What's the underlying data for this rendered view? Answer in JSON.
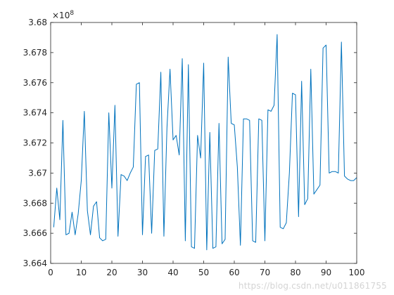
{
  "chart_data": {
    "type": "line",
    "title": "",
    "xlabel": "",
    "ylabel": "",
    "exponent_label": "×10",
    "exponent_power": "8",
    "xlim": [
      0,
      100
    ],
    "ylim": [
      3.664,
      3.68
    ],
    "x_ticks": [
      0,
      10,
      20,
      30,
      40,
      50,
      60,
      70,
      80,
      90,
      100
    ],
    "x_tick_labels": [
      "0",
      "10",
      "20",
      "30",
      "40",
      "50",
      "60",
      "70",
      "80",
      "90",
      "100"
    ],
    "y_ticks": [
      3.664,
      3.666,
      3.668,
      3.67,
      3.672,
      3.674,
      3.676,
      3.678,
      3.68
    ],
    "y_tick_labels": [
      "3.664",
      "3.666",
      "3.668",
      "3.67",
      "3.672",
      "3.674",
      "3.676",
      "3.678",
      "3.68"
    ],
    "grid": false,
    "color": "#0072BD",
    "series": [
      {
        "x": [
          1,
          2,
          3,
          4,
          5,
          6,
          7,
          8,
          9,
          10,
          11,
          12,
          13,
          14,
          15,
          16,
          17,
          18,
          19,
          20,
          21,
          22,
          23,
          24,
          25,
          26,
          27,
          28,
          29,
          30,
          31,
          32,
          33,
          34,
          35,
          36,
          37,
          38,
          39,
          40,
          41,
          42,
          43,
          44,
          45,
          46,
          47,
          48,
          49,
          50,
          51,
          52,
          53,
          54,
          55,
          56,
          57,
          58,
          59,
          60,
          61,
          62,
          63,
          64,
          65,
          66,
          67,
          68,
          69,
          70,
          71,
          72,
          73,
          74,
          75,
          76,
          77,
          78,
          79,
          80,
          81,
          82,
          83,
          84,
          85,
          86,
          87,
          88,
          89,
          90,
          91,
          92,
          93,
          94,
          95,
          96,
          97,
          98,
          99,
          100
        ],
        "y": [
          3.6664,
          3.669,
          3.6669,
          3.6735,
          3.6659,
          3.666,
          3.6674,
          3.6659,
          3.6673,
          3.6695,
          3.6741,
          3.6675,
          3.6659,
          3.6678,
          3.6681,
          3.6657,
          3.6655,
          3.6656,
          3.674,
          3.669,
          3.6745,
          3.6658,
          3.6699,
          3.6698,
          3.6695,
          3.67,
          3.6704,
          3.6759,
          3.676,
          3.6659,
          3.6711,
          3.6712,
          3.666,
          3.6715,
          3.6716,
          3.6767,
          3.6658,
          3.673,
          3.6769,
          3.6722,
          3.6725,
          3.6712,
          3.6776,
          3.6655,
          3.6772,
          3.6651,
          3.665,
          3.6725,
          3.671,
          3.6773,
          3.6649,
          3.6727,
          3.665,
          3.6651,
          3.6733,
          3.6653,
          3.6656,
          3.6777,
          3.6733,
          3.6732,
          3.6704,
          3.6652,
          3.6736,
          3.6736,
          3.6735,
          3.6655,
          3.6654,
          3.6736,
          3.6735,
          3.6655,
          3.6742,
          3.6741,
          3.6745,
          3.6792,
          3.6664,
          3.6663,
          3.6667,
          3.67,
          3.6753,
          3.6752,
          3.6671,
          3.6761,
          3.6679,
          3.6683,
          3.6769,
          3.6686,
          3.6689,
          3.6692,
          3.6783,
          3.6785,
          3.67,
          3.6701,
          3.6701,
          3.67,
          3.6787,
          3.6698,
          3.6696,
          3.6695,
          3.6695,
          3.6697
        ]
      }
    ]
  },
  "watermark": "https://blog.csdn.net/u011861755"
}
